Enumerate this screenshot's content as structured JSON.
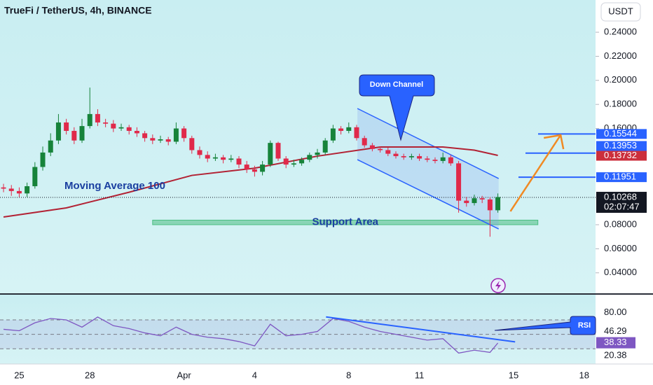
{
  "chart_data": [
    {
      "type": "candlestick",
      "title": "TrueFi / TetherUS, 4h, BINANCE",
      "currency": "USDT",
      "up_color": "#16833a",
      "down_color": "#e0294a",
      "x": [
        0,
        1,
        2,
        3,
        4,
        5,
        6,
        7,
        8,
        9,
        10,
        11,
        12,
        13,
        14,
        15,
        16,
        17,
        18,
        19,
        20,
        21,
        22,
        23,
        24,
        25,
        26,
        27,
        28,
        29,
        30,
        31,
        32,
        33,
        34,
        35,
        36,
        37,
        38,
        39,
        40,
        41,
        42,
        43,
        44,
        45,
        46,
        47,
        48,
        49,
        50,
        51,
        52,
        53,
        54,
        55,
        56,
        57,
        58,
        59,
        60,
        61,
        62,
        63
      ],
      "open": [
        0.111,
        0.11,
        0.108,
        0.106,
        0.112,
        0.128,
        0.14,
        0.15,
        0.165,
        0.158,
        0.15,
        0.162,
        0.172,
        0.165,
        0.164,
        0.16,
        0.161,
        0.158,
        0.156,
        0.152,
        0.15,
        0.151,
        0.149,
        0.16,
        0.152,
        0.142,
        0.138,
        0.135,
        0.136,
        0.134,
        0.135,
        0.13,
        0.126,
        0.124,
        0.13,
        0.148,
        0.135,
        0.13,
        0.131,
        0.134,
        0.138,
        0.14,
        0.15,
        0.16,
        0.158,
        0.161,
        0.152,
        0.146,
        0.143,
        0.142,
        0.139,
        0.137,
        0.136,
        0.137,
        0.135,
        0.134,
        0.133,
        0.136,
        0.131,
        0.1,
        0.098,
        0.102,
        0.101,
        0.092
      ],
      "high": [
        0.114,
        0.113,
        0.111,
        0.115,
        0.132,
        0.145,
        0.156,
        0.172,
        0.168,
        0.161,
        0.168,
        0.194,
        0.176,
        0.168,
        0.167,
        0.164,
        0.163,
        0.161,
        0.158,
        0.155,
        0.154,
        0.153,
        0.165,
        0.162,
        0.154,
        0.145,
        0.141,
        0.139,
        0.138,
        0.138,
        0.137,
        0.133,
        0.129,
        0.133,
        0.15,
        0.149,
        0.137,
        0.134,
        0.136,
        0.14,
        0.143,
        0.152,
        0.163,
        0.162,
        0.165,
        0.163,
        0.154,
        0.148,
        0.145,
        0.144,
        0.141,
        0.139,
        0.139,
        0.139,
        0.137,
        0.136,
        0.14,
        0.138,
        0.133,
        0.103,
        0.105,
        0.104,
        0.103,
        0.106
      ],
      "low": [
        0.107,
        0.104,
        0.103,
        0.103,
        0.11,
        0.125,
        0.137,
        0.147,
        0.155,
        0.147,
        0.148,
        0.16,
        0.162,
        0.161,
        0.157,
        0.158,
        0.155,
        0.153,
        0.149,
        0.147,
        0.148,
        0.146,
        0.147,
        0.149,
        0.139,
        0.135,
        0.132,
        0.133,
        0.131,
        0.132,
        0.127,
        0.123,
        0.12,
        0.121,
        0.128,
        0.133,
        0.127,
        0.128,
        0.129,
        0.132,
        0.135,
        0.138,
        0.148,
        0.155,
        0.156,
        0.15,
        0.144,
        0.141,
        0.14,
        0.137,
        0.135,
        0.134,
        0.134,
        0.133,
        0.132,
        0.131,
        0.131,
        0.129,
        0.09,
        0.095,
        0.096,
        0.098,
        0.07,
        0.09
      ],
      "close": [
        0.11,
        0.108,
        0.106,
        0.112,
        0.128,
        0.14,
        0.15,
        0.165,
        0.158,
        0.15,
        0.162,
        0.172,
        0.165,
        0.164,
        0.16,
        0.161,
        0.158,
        0.156,
        0.152,
        0.15,
        0.151,
        0.149,
        0.16,
        0.152,
        0.142,
        0.138,
        0.135,
        0.136,
        0.134,
        0.135,
        0.13,
        0.126,
        0.124,
        0.13,
        0.148,
        0.135,
        0.13,
        0.131,
        0.134,
        0.138,
        0.14,
        0.15,
        0.16,
        0.158,
        0.161,
        0.152,
        0.146,
        0.143,
        0.142,
        0.139,
        0.137,
        0.136,
        0.137,
        0.135,
        0.134,
        0.133,
        0.136,
        0.131,
        0.1,
        0.098,
        0.102,
        0.101,
        0.092,
        0.103
      ],
      "xlim": [
        -0.45,
        75.45
      ],
      "xticks": [
        {
          "value": 2,
          "label": "25"
        },
        {
          "value": 11,
          "label": "28"
        },
        {
          "value": 23,
          "label": "Apr"
        },
        {
          "value": 32,
          "label": "4"
        },
        {
          "value": 44,
          "label": "8"
        },
        {
          "value": 53,
          "label": "11"
        },
        {
          "value": 65,
          "label": "15"
        },
        {
          "value": 74,
          "label": "18"
        }
      ],
      "ylim": [
        0.0224,
        0.2668
      ],
      "yticks": [
        {
          "value": 0.24,
          "label": "0.24000"
        },
        {
          "value": 0.22,
          "label": "0.22000"
        },
        {
          "value": 0.2,
          "label": "0.20000"
        },
        {
          "value": 0.18,
          "label": "0.18000"
        },
        {
          "value": 0.16,
          "label": "0.16000"
        },
        {
          "value": 0.08,
          "label": "0.08000"
        },
        {
          "value": 0.06,
          "label": "0.06000"
        },
        {
          "value": 0.04,
          "label": "0.04000"
        }
      ],
      "ma": {
        "name": "Moving Average 100",
        "color": "#b22234",
        "x": [
          0,
          8,
          16,
          24,
          32,
          40,
          48,
          56,
          60,
          63
        ],
        "values": [
          0.0864,
          0.094,
          0.107,
          0.121,
          0.127,
          0.137,
          0.1446,
          0.1446,
          0.142,
          0.1376
        ]
      },
      "ma_last": 0.13732,
      "levels": [
        0.15544,
        0.13953,
        0.11951
      ],
      "level_color": "#2962ff",
      "last": 0.10268,
      "countdown": "02:07:47",
      "support": {
        "label": "Support Area",
        "x": [
          19,
          68.1
        ],
        "values": [
          0.08,
          0.0838
        ]
      },
      "channel": {
        "label": "Down Channel",
        "upper": {
          "x": [
            45.1,
            63.1
          ],
          "values": [
            0.1766,
            0.1184
          ]
        },
        "lower": {
          "x": [
            45.1,
            63.1
          ],
          "values": [
            0.1341,
            0.0765
          ]
        }
      },
      "projection": {
        "color": "#f08a24",
        "x": [
          64.6,
          71
        ],
        "values": [
          0.0911,
          0.1545
        ]
      }
    },
    {
      "type": "line",
      "series": [
        {
          "name": "RSI",
          "color": "#7e57c2",
          "x": [
            0,
            2,
            4,
            6,
            8,
            10,
            12,
            14,
            16,
            18,
            20,
            22,
            24,
            26,
            28,
            30,
            32,
            34,
            36,
            38,
            40,
            42,
            44,
            46,
            48,
            50,
            52,
            54,
            56,
            58,
            60,
            62,
            63
          ],
          "values": [
            57,
            55,
            66,
            72,
            70,
            60,
            74,
            62,
            58,
            52,
            48,
            60,
            50,
            46,
            44,
            40,
            34,
            64,
            48,
            50,
            54,
            72,
            68,
            60,
            54,
            50,
            46,
            42,
            44,
            24,
            28,
            25,
            38
          ]
        }
      ],
      "ylim": [
        8.85,
        105
      ],
      "yticks": [
        {
          "value": 80,
          "label": "80.00"
        },
        {
          "value": 20.38,
          "label": "20.38"
        }
      ],
      "bands": [
        70,
        50,
        30
      ],
      "current": 38.33,
      "ma_current": 46.29,
      "trend": {
        "x": [
          41.1,
          65.2
        ],
        "values": [
          74.2,
          39.6
        ]
      }
    }
  ]
}
